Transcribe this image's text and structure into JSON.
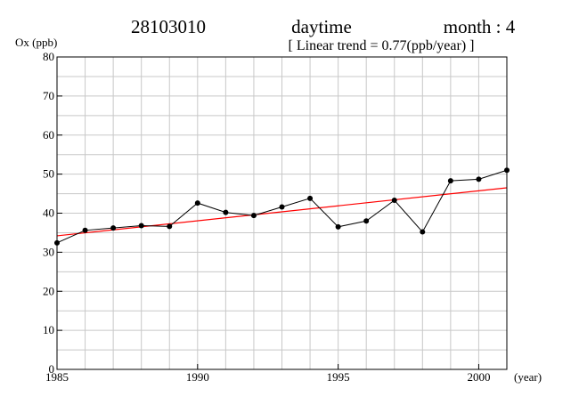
{
  "header": {
    "station": "28103010",
    "period": "daytime",
    "month": "month : 4",
    "trend": "[ Linear trend = 0.77(ppb/year) ]"
  },
  "chart_data": {
    "type": "line",
    "ylabel": "Ox (ppb)",
    "xlabel": "(year)",
    "xlim": [
      1985,
      2001
    ],
    "ylim": [
      0,
      80
    ],
    "x_ticks": [
      1985,
      1990,
      1995,
      2000
    ],
    "y_ticks": [
      0,
      10,
      20,
      30,
      40,
      50,
      60,
      70,
      80
    ],
    "grid": true,
    "series": [
      {
        "type": "line",
        "color": "#000000",
        "markers": true,
        "x": [
          1985,
          1986,
          1987,
          1988,
          1989,
          1990,
          1991,
          1992,
          1993,
          1994,
          1995,
          1996,
          1997,
          1998,
          1999,
          2000,
          2001
        ],
        "y": [
          32.4,
          35.6,
          36.2,
          36.8,
          36.6,
          42.6,
          40.2,
          39.4,
          41.6,
          43.8,
          36.5,
          38.0,
          43.3,
          35.2,
          48.3,
          48.7,
          51.0
        ]
      },
      {
        "type": "trend",
        "color": "#ff0000",
        "markers": false,
        "x": [
          1985,
          2001
        ],
        "y": [
          34.2,
          46.5
        ]
      }
    ]
  }
}
